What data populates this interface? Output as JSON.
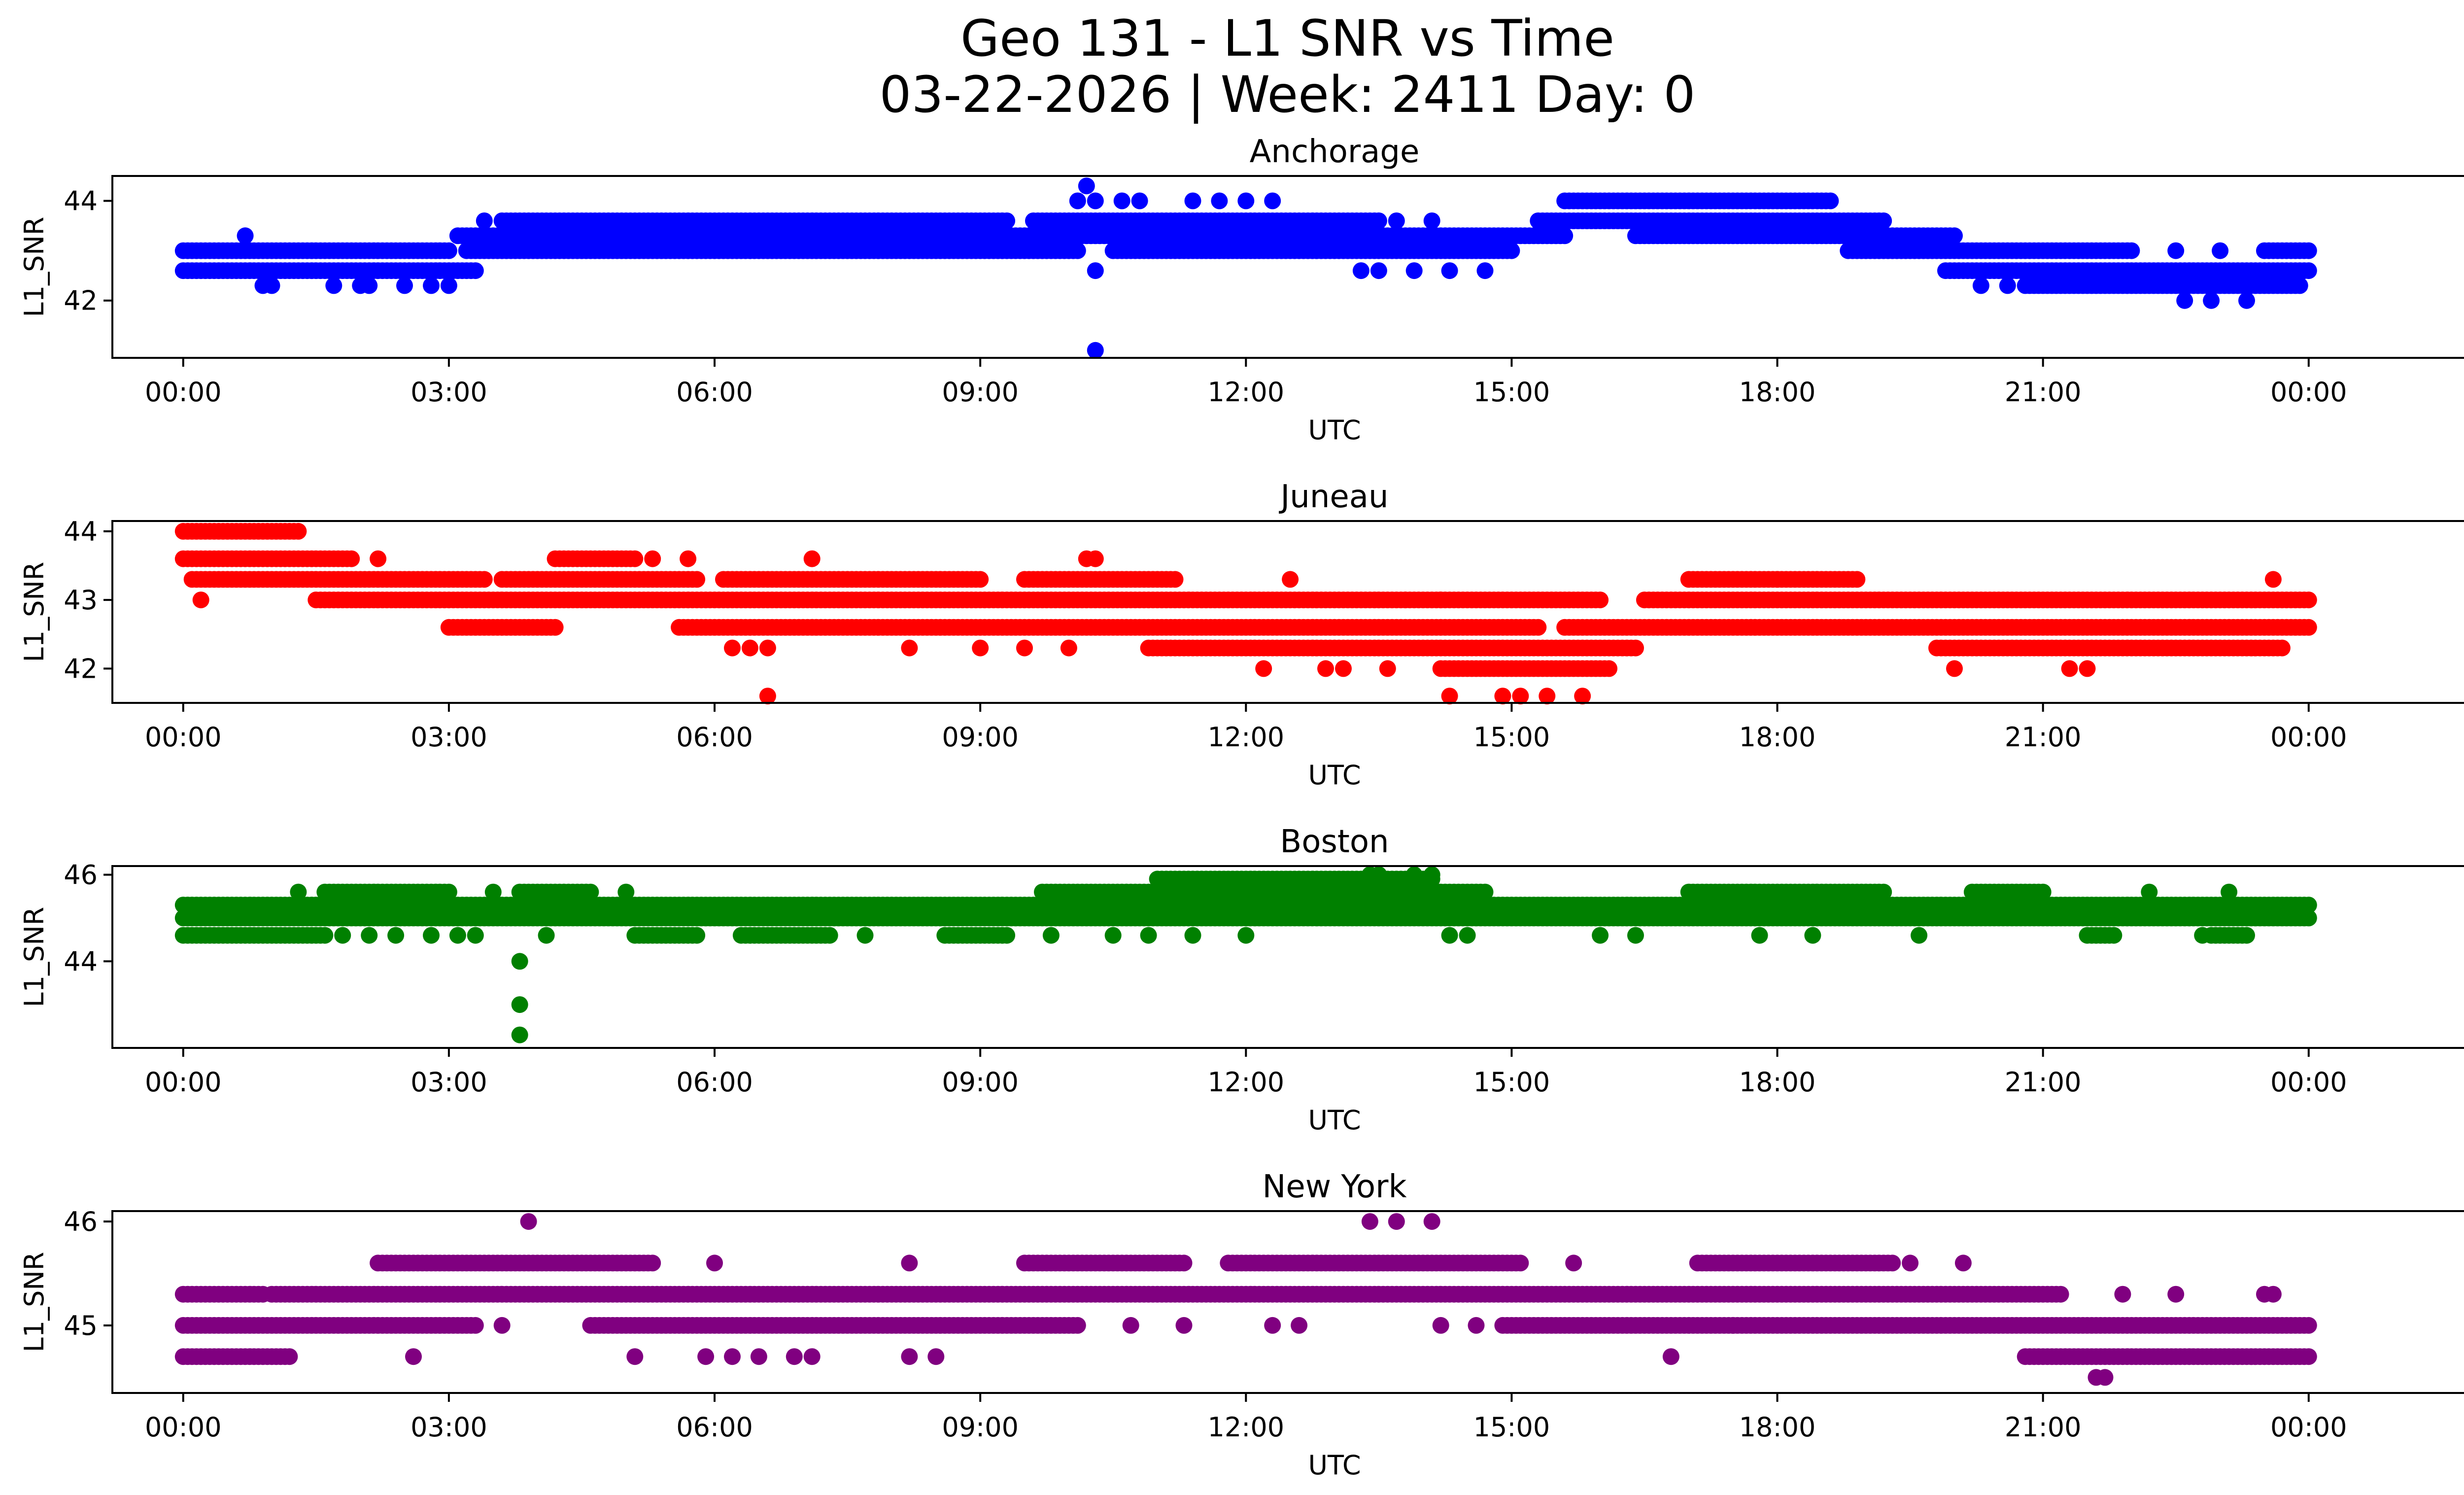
{
  "figure": {
    "title_line1": "Geo 131 - L1 SNR vs Time",
    "title_line2": "03-22-2026 | Week: 2411 Day: 0"
  },
  "chart_data": [
    {
      "type": "scatter",
      "title": "Anchorage",
      "xlabel": "UTC",
      "ylabel": "L1_SNR",
      "color": "#0000ff",
      "xlim": [
        -0.8,
        26.8
      ],
      "ylim": [
        40.85,
        44.5
      ],
      "yticks": [
        42,
        44
      ],
      "xtick_labels": [
        "00:00",
        "03:00",
        "06:00",
        "09:00",
        "12:00",
        "15:00",
        "18:00",
        "21:00",
        "00:00"
      ],
      "levels": [
        {
          "y": 42.6,
          "ranges": [
            [
              0,
              3.3
            ],
            [
              19.9,
              24
            ]
          ]
        },
        {
          "y": 43.0,
          "ranges": [
            [
              0,
              3.0
            ],
            [
              3.2,
              10.1
            ],
            [
              10.5,
              15.0
            ],
            [
              18.8,
              22.0
            ],
            [
              23.5,
              24
            ]
          ]
        },
        {
          "y": 43.3,
          "ranges": [
            [
              3.1,
              15.6
            ],
            [
              16.4,
              20.0
            ]
          ]
        },
        {
          "y": 43.6,
          "ranges": [
            [
              3.6,
              9.3
            ],
            [
              9.6,
              13.5
            ],
            [
              15.3,
              19.2
            ]
          ]
        },
        {
          "y": 44.0,
          "ranges": [
            [
              15.6,
              18.6
            ]
          ]
        },
        {
          "y": 42.3,
          "ranges": [
            [
              20.8,
              23.9
            ]
          ]
        }
      ],
      "points": [
        [
          0.7,
          43.3
        ],
        [
          0.9,
          42.3
        ],
        [
          1.0,
          42.3
        ],
        [
          1.7,
          42.3
        ],
        [
          2.0,
          42.3
        ],
        [
          2.1,
          42.3
        ],
        [
          2.5,
          42.3
        ],
        [
          2.8,
          42.3
        ],
        [
          3.0,
          42.3
        ],
        [
          3.4,
          43.6
        ],
        [
          10.2,
          44.3
        ],
        [
          10.1,
          44.0
        ],
        [
          10.3,
          44.0
        ],
        [
          10.6,
          44.0
        ],
        [
          10.8,
          44.0
        ],
        [
          11.4,
          44.0
        ],
        [
          11.7,
          44.0
        ],
        [
          12.0,
          44.0
        ],
        [
          12.3,
          44.0
        ],
        [
          10.3,
          42.6
        ],
        [
          10.3,
          41.0
        ],
        [
          13.3,
          42.6
        ],
        [
          13.5,
          42.6
        ],
        [
          13.9,
          42.6
        ],
        [
          14.3,
          42.6
        ],
        [
          14.7,
          42.6
        ],
        [
          13.7,
          43.6
        ],
        [
          14.1,
          43.6
        ],
        [
          20.3,
          42.3
        ],
        [
          20.6,
          42.3
        ],
        [
          22.6,
          42.0
        ],
        [
          22.9,
          42.0
        ],
        [
          23.3,
          42.0
        ],
        [
          23.0,
          43.0
        ],
        [
          22.5,
          43.0
        ]
      ]
    },
    {
      "type": "scatter",
      "title": "Juneau",
      "xlabel": "UTC",
      "ylabel": "L1_SNR",
      "color": "#ff0000",
      "xlim": [
        -0.8,
        26.8
      ],
      "ylim": [
        41.5,
        44.15
      ],
      "yticks": [
        42,
        43,
        44
      ],
      "xtick_labels": [
        "00:00",
        "03:00",
        "06:00",
        "09:00",
        "12:00",
        "15:00",
        "18:00",
        "21:00",
        "00:00"
      ],
      "levels": [
        {
          "y": 44.0,
          "ranges": [
            [
              0,
              1.3
            ]
          ]
        },
        {
          "y": 43.6,
          "ranges": [
            [
              0,
              1.9
            ],
            [
              4.2,
              5.1
            ]
          ]
        },
        {
          "y": 43.3,
          "ranges": [
            [
              0.1,
              3.4
            ],
            [
              3.6,
              5.8
            ],
            [
              6.1,
              9.0
            ],
            [
              9.5,
              11.2
            ],
            [
              17.0,
              18.9
            ]
          ]
        },
        {
          "y": 43.0,
          "ranges": [
            [
              1.5,
              16.0
            ],
            [
              16.5,
              24
            ]
          ]
        },
        {
          "y": 42.6,
          "ranges": [
            [
              3.0,
              4.2
            ],
            [
              5.6,
              15.3
            ],
            [
              15.6,
              24
            ]
          ]
        },
        {
          "y": 42.3,
          "ranges": [
            [
              10.9,
              16.4
            ],
            [
              19.8,
              23.7
            ]
          ]
        },
        {
          "y": 42.0,
          "ranges": [
            [
              14.2,
              16.1
            ]
          ]
        }
      ],
      "points": [
        [
          0.2,
          43.0
        ],
        [
          2.2,
          43.6
        ],
        [
          5.3,
          43.6
        ],
        [
          5.7,
          43.6
        ],
        [
          7.1,
          43.6
        ],
        [
          10.2,
          43.6
        ],
        [
          10.3,
          43.6
        ],
        [
          12.5,
          43.3
        ],
        [
          6.2,
          42.3
        ],
        [
          6.4,
          42.3
        ],
        [
          6.6,
          42.3
        ],
        [
          6.6,
          41.6
        ],
        [
          8.2,
          42.3
        ],
        [
          9.0,
          42.3
        ],
        [
          9.5,
          42.3
        ],
        [
          10.0,
          42.3
        ],
        [
          12.2,
          42.0
        ],
        [
          12.9,
          42.0
        ],
        [
          13.1,
          42.0
        ],
        [
          13.6,
          42.0
        ],
        [
          14.3,
          41.6
        ],
        [
          14.9,
          41.6
        ],
        [
          15.1,
          41.6
        ],
        [
          15.4,
          41.6
        ],
        [
          15.8,
          41.6
        ],
        [
          13.8,
          43.0
        ],
        [
          14.2,
          43.0
        ],
        [
          18.0,
          43.3
        ],
        [
          20.0,
          42.0
        ],
        [
          21.3,
          42.0
        ],
        [
          21.5,
          42.0
        ],
        [
          23.6,
          43.3
        ]
      ]
    },
    {
      "type": "scatter",
      "title": "Boston",
      "xlabel": "UTC",
      "ylabel": "L1_SNR",
      "color": "#008000",
      "xlim": [
        -0.8,
        26.8
      ],
      "ylim": [
        42.0,
        46.2
      ],
      "yticks": [
        44,
        46
      ],
      "xtick_labels": [
        "00:00",
        "03:00",
        "06:00",
        "09:00",
        "12:00",
        "15:00",
        "18:00",
        "21:00",
        "00:00"
      ],
      "levels": [
        {
          "y": 45.0,
          "ranges": [
            [
              0,
              24
            ]
          ]
        },
        {
          "y": 45.3,
          "ranges": [
            [
              0,
              24
            ]
          ]
        },
        {
          "y": 44.6,
          "ranges": [
            [
              0,
              1.6
            ],
            [
              5.1,
              5.8
            ],
            [
              6.3,
              7.3
            ],
            [
              8.6,
              9.3
            ],
            [
              21.5,
              21.8
            ],
            [
              22.9,
              23.3
            ]
          ]
        },
        {
          "y": 45.6,
          "ranges": [
            [
              1.6,
              3.0
            ],
            [
              3.8,
              4.6
            ],
            [
              9.7,
              14.7
            ],
            [
              17.0,
              19.2
            ],
            [
              20.2,
              21.0
            ]
          ]
        },
        {
          "y": 45.9,
          "ranges": [
            [
              11.0,
              14.1
            ]
          ]
        }
      ],
      "points": [
        [
          1.3,
          45.6
        ],
        [
          1.8,
          44.6
        ],
        [
          2.1,
          44.6
        ],
        [
          2.4,
          44.6
        ],
        [
          2.8,
          44.6
        ],
        [
          3.1,
          44.6
        ],
        [
          3.3,
          44.6
        ],
        [
          3.5,
          45.6
        ],
        [
          3.8,
          44.0
        ],
        [
          3.8,
          43.0
        ],
        [
          3.8,
          42.3
        ],
        [
          4.1,
          44.6
        ],
        [
          5.0,
          45.6
        ],
        [
          7.7,
          44.6
        ],
        [
          9.8,
          44.6
        ],
        [
          10.5,
          44.6
        ],
        [
          10.9,
          44.6
        ],
        [
          11.4,
          44.6
        ],
        [
          12.0,
          44.6
        ],
        [
          13.4,
          46.0
        ],
        [
          13.5,
          46.0
        ],
        [
          13.9,
          46.0
        ],
        [
          14.1,
          46.0
        ],
        [
          14.3,
          44.6
        ],
        [
          14.5,
          44.6
        ],
        [
          16.0,
          44.6
        ],
        [
          16.4,
          44.6
        ],
        [
          17.8,
          44.6
        ],
        [
          18.4,
          44.6
        ],
        [
          19.6,
          44.6
        ],
        [
          22.2,
          45.6
        ],
        [
          22.8,
          44.6
        ],
        [
          23.1,
          45.6
        ]
      ]
    },
    {
      "type": "scatter",
      "title": "New York",
      "xlabel": "UTC",
      "ylabel": "L1_SNR",
      "color": "#800080",
      "xlim": [
        -0.8,
        26.8
      ],
      "ylim": [
        44.35,
        46.1
      ],
      "yticks": [
        45,
        46
      ],
      "ytick_labels": [
        "45",
        "46"
      ],
      "xtick_labels": [
        "00:00",
        "03:00",
        "06:00",
        "09:00",
        "12:00",
        "15:00",
        "18:00",
        "21:00",
        "00:00"
      ],
      "levels": [
        {
          "y": 45.0,
          "ranges": [
            [
              0,
              3.3
            ],
            [
              4.6,
              10.1
            ],
            [
              14.9,
              24
            ]
          ]
        },
        {
          "y": 45.3,
          "ranges": [
            [
              0,
              0.9
            ],
            [
              1.0,
              21.2
            ]
          ]
        },
        {
          "y": 45.6,
          "ranges": [
            [
              2.2,
              5.3
            ],
            [
              9.5,
              11.3
            ],
            [
              11.8,
              15.1
            ],
            [
              17.1,
              19.3
            ]
          ]
        },
        {
          "y": 44.7,
          "ranges": [
            [
              0,
              1.2
            ],
            [
              20.8,
              24
            ]
          ]
        }
      ],
      "points": [
        [
          2.6,
          44.7
        ],
        [
          3.6,
          45.0
        ],
        [
          3.9,
          46.0
        ],
        [
          5.1,
          44.7
        ],
        [
          5.9,
          44.7
        ],
        [
          6.2,
          44.7
        ],
        [
          6.5,
          44.7
        ],
        [
          6.9,
          44.7
        ],
        [
          7.1,
          44.7
        ],
        [
          8.2,
          44.7
        ],
        [
          8.5,
          44.7
        ],
        [
          6.0,
          45.6
        ],
        [
          8.2,
          45.6
        ],
        [
          10.7,
          45.0
        ],
        [
          11.3,
          45.0
        ],
        [
          12.3,
          45.0
        ],
        [
          12.6,
          45.0
        ],
        [
          13.4,
          46.0
        ],
        [
          13.7,
          46.0
        ],
        [
          14.1,
          46.0
        ],
        [
          14.2,
          45.0
        ],
        [
          14.6,
          45.0
        ],
        [
          15.7,
          45.6
        ],
        [
          16.8,
          44.7
        ],
        [
          17.5,
          45.0
        ],
        [
          19.5,
          45.6
        ],
        [
          20.1,
          45.6
        ],
        [
          21.6,
          44.5
        ],
        [
          21.7,
          44.5
        ],
        [
          21.9,
          45.3
        ],
        [
          22.5,
          45.3
        ],
        [
          23.5,
          45.3
        ],
        [
          23.6,
          45.3
        ]
      ]
    }
  ]
}
